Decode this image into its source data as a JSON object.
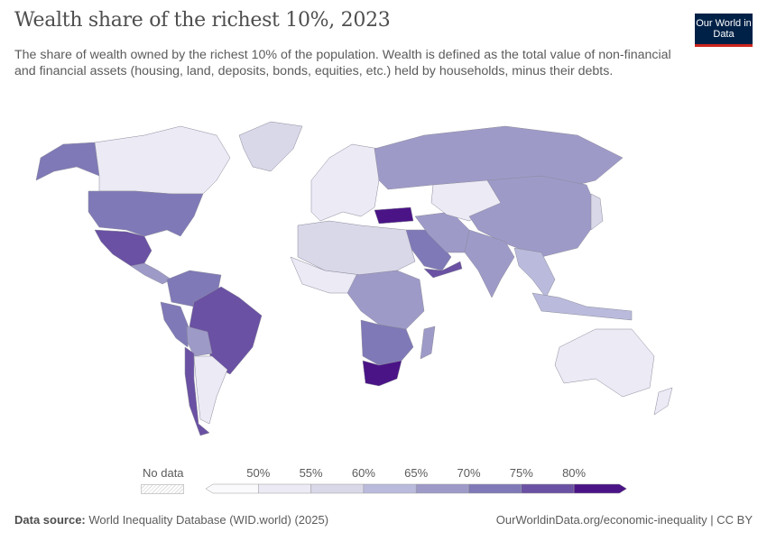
{
  "header": {
    "title": "Wealth share of the richest 10%, 2023",
    "subtitle": "The share of wealth owned by the richest 10% of the population. Wealth is defined as the total value of non-financial and financial assets (housing, land, deposits, bonds, equities, etc.) held by households, minus their debts.",
    "logo_text": "Our World in Data"
  },
  "legend": {
    "no_data_label": "No data",
    "ticks": [
      "50%",
      "55%",
      "60%",
      "65%",
      "70%",
      "75%",
      "80%"
    ],
    "colors": [
      "#fafafd",
      "#ebeaf5",
      "#d9d8e9",
      "#babbdc",
      "#9e9ac8",
      "#7f79b7",
      "#6a51a3",
      "#4a1486"
    ]
  },
  "map_regions": [
    {
      "name": "Alaska (US)",
      "bin": 5
    },
    {
      "name": "Canada",
      "bin": 1
    },
    {
      "name": "Greenland",
      "bin": 2
    },
    {
      "name": "United States",
      "bin": 5
    },
    {
      "name": "Mexico",
      "bin": 6
    },
    {
      "name": "Central America",
      "bin": 4
    },
    {
      "name": "Colombia/Venezuela",
      "bin": 5
    },
    {
      "name": "Peru",
      "bin": 5
    },
    {
      "name": "Brazil",
      "bin": 6
    },
    {
      "name": "Bolivia",
      "bin": 4
    },
    {
      "name": "Chile",
      "bin": 6
    },
    {
      "name": "Argentina",
      "bin": 1
    },
    {
      "name": "Europe",
      "bin": 1
    },
    {
      "name": "Russia",
      "bin": 4
    },
    {
      "name": "Turkey",
      "bin": 7
    },
    {
      "name": "Saudi Arabia",
      "bin": 5
    },
    {
      "name": "Yemen",
      "bin": 6
    },
    {
      "name": "Iran",
      "bin": 4
    },
    {
      "name": "Central Asia",
      "bin": 1
    },
    {
      "name": "China",
      "bin": 4
    },
    {
      "name": "India",
      "bin": 4
    },
    {
      "name": "Southeast Asia",
      "bin": 3
    },
    {
      "name": "Indonesia",
      "bin": 3
    },
    {
      "name": "Australia",
      "bin": 1
    },
    {
      "name": "New Zealand",
      "bin": 1
    },
    {
      "name": "North Africa",
      "bin": 2
    },
    {
      "name": "West Africa",
      "bin": 1
    },
    {
      "name": "Central Africa",
      "bin": 4
    },
    {
      "name": "Southern Africa",
      "bin": 5
    },
    {
      "name": "South Africa",
      "bin": 7
    },
    {
      "name": "Madagascar",
      "bin": 4
    },
    {
      "name": "Japan",
      "bin": 2
    }
  ],
  "footer": {
    "source_label": "Data source:",
    "source": "World Inequality Database (WID.world) (2025)",
    "link": "OurWorldinData.org/economic-inequality | CC BY"
  }
}
